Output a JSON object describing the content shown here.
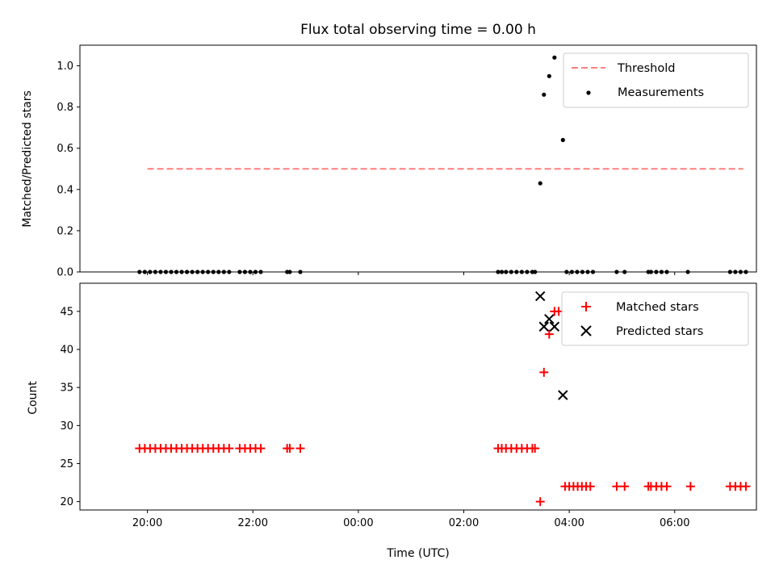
{
  "chart_data": {
    "title": "Flux total observing time = 0.00 h",
    "xlabel": "Time (UTC)",
    "x_ticks": [
      "20:00",
      "22:00",
      "00:00",
      "02:00",
      "04:00",
      "06:00"
    ],
    "x_tick_hours": [
      20,
      22,
      24,
      26,
      28,
      30
    ],
    "xlim_hours": [
      18.72,
      31.55
    ],
    "panels": [
      {
        "type": "scatter",
        "ylabel": "Matched/Predicted stars",
        "ylim": [
          0,
          1.1
        ],
        "y_ticks": [
          0.0,
          0.2,
          0.4,
          0.6,
          0.8,
          1.0
        ],
        "y_tick_labels": [
          "0.0",
          "0.2",
          "0.4",
          "0.6",
          "0.8",
          "1.0"
        ],
        "legend_position": "top-right",
        "series": [
          {
            "name": "Threshold",
            "kind": "dashed-line",
            "color": "#ff7f7f",
            "x": [
              20.0,
              31.3
            ],
            "y": [
              0.5,
              0.5
            ]
          },
          {
            "name": "Measurements",
            "kind": "dot",
            "color": "#000000",
            "points": [
              [
                19.85,
                0.0
              ],
              [
                19.95,
                0.0
              ],
              [
                20.05,
                0.0
              ],
              [
                20.15,
                0.0
              ],
              [
                20.25,
                0.0
              ],
              [
                20.35,
                0.0
              ],
              [
                20.45,
                0.0
              ],
              [
                20.55,
                0.0
              ],
              [
                20.65,
                0.0
              ],
              [
                20.75,
                0.0
              ],
              [
                20.85,
                0.0
              ],
              [
                20.95,
                0.0
              ],
              [
                21.05,
                0.0
              ],
              [
                21.15,
                0.0
              ],
              [
                21.25,
                0.0
              ],
              [
                21.35,
                0.0
              ],
              [
                21.45,
                0.0
              ],
              [
                21.55,
                0.0
              ],
              [
                21.75,
                0.0
              ],
              [
                21.85,
                0.0
              ],
              [
                21.95,
                0.0
              ],
              [
                22.05,
                0.0
              ],
              [
                22.15,
                0.0
              ],
              [
                22.65,
                0.0
              ],
              [
                22.7,
                0.0
              ],
              [
                22.9,
                0.0
              ],
              [
                26.65,
                0.0
              ],
              [
                26.72,
                0.0
              ],
              [
                26.8,
                0.0
              ],
              [
                26.9,
                0.0
              ],
              [
                27.0,
                0.0
              ],
              [
                27.1,
                0.0
              ],
              [
                27.2,
                0.0
              ],
              [
                27.3,
                0.0
              ],
              [
                27.35,
                0.0
              ],
              [
                27.45,
                0.43
              ],
              [
                27.52,
                0.86
              ],
              [
                27.62,
                0.95
              ],
              [
                27.72,
                1.04
              ],
              [
                27.88,
                0.64
              ],
              [
                27.95,
                0.0
              ],
              [
                28.05,
                0.0
              ],
              [
                28.15,
                0.0
              ],
              [
                28.25,
                0.0
              ],
              [
                28.35,
                0.0
              ],
              [
                28.45,
                0.0
              ],
              [
                28.9,
                0.0
              ],
              [
                29.05,
                0.0
              ],
              [
                29.5,
                0.0
              ],
              [
                29.55,
                0.0
              ],
              [
                29.65,
                0.0
              ],
              [
                29.75,
                0.0
              ],
              [
                29.85,
                0.0
              ],
              [
                30.25,
                0.0
              ],
              [
                31.05,
                0.0
              ],
              [
                31.15,
                0.0
              ],
              [
                31.25,
                0.0
              ],
              [
                31.35,
                0.0
              ]
            ]
          }
        ]
      },
      {
        "type": "scatter",
        "ylabel": "Count",
        "ylim": [
          18.9,
          48.7
        ],
        "y_ticks": [
          20,
          25,
          30,
          35,
          40,
          45
        ],
        "y_tick_labels": [
          "20",
          "25",
          "30",
          "35",
          "40",
          "45"
        ],
        "legend_position": "top-right",
        "series": [
          {
            "name": "Matched stars",
            "kind": "plus",
            "color": "#ff0000",
            "points": [
              [
                19.85,
                27
              ],
              [
                19.95,
                27
              ],
              [
                20.05,
                27
              ],
              [
                20.15,
                27
              ],
              [
                20.25,
                27
              ],
              [
                20.35,
                27
              ],
              [
                20.45,
                27
              ],
              [
                20.55,
                27
              ],
              [
                20.65,
                27
              ],
              [
                20.75,
                27
              ],
              [
                20.85,
                27
              ],
              [
                20.95,
                27
              ],
              [
                21.05,
                27
              ],
              [
                21.15,
                27
              ],
              [
                21.25,
                27
              ],
              [
                21.35,
                27
              ],
              [
                21.45,
                27
              ],
              [
                21.55,
                27
              ],
              [
                21.75,
                27
              ],
              [
                21.85,
                27
              ],
              [
                21.95,
                27
              ],
              [
                22.05,
                27
              ],
              [
                22.15,
                27
              ],
              [
                22.65,
                27
              ],
              [
                22.7,
                27
              ],
              [
                22.9,
                27
              ],
              [
                26.65,
                27
              ],
              [
                26.72,
                27
              ],
              [
                26.8,
                27
              ],
              [
                26.9,
                27
              ],
              [
                27.0,
                27
              ],
              [
                27.1,
                27
              ],
              [
                27.2,
                27
              ],
              [
                27.3,
                27
              ],
              [
                27.35,
                27
              ],
              [
                27.45,
                20
              ],
              [
                27.52,
                37
              ],
              [
                27.62,
                42
              ],
              [
                27.72,
                45
              ],
              [
                27.8,
                45
              ],
              [
                27.92,
                22
              ],
              [
                28.0,
                22
              ],
              [
                28.08,
                22
              ],
              [
                28.16,
                22
              ],
              [
                28.24,
                22
              ],
              [
                28.32,
                22
              ],
              [
                28.4,
                22
              ],
              [
                28.9,
                22
              ],
              [
                29.05,
                22
              ],
              [
                29.5,
                22
              ],
              [
                29.55,
                22
              ],
              [
                29.65,
                22
              ],
              [
                29.75,
                22
              ],
              [
                29.85,
                22
              ],
              [
                30.3,
                22
              ],
              [
                31.05,
                22
              ],
              [
                31.15,
                22
              ],
              [
                31.25,
                22
              ],
              [
                31.35,
                22
              ]
            ]
          },
          {
            "name": "Predicted stars",
            "kind": "x",
            "color": "#000000",
            "points": [
              [
                27.45,
                47
              ],
              [
                27.52,
                43
              ],
              [
                27.62,
                44
              ],
              [
                27.72,
                43
              ],
              [
                27.88,
                34
              ]
            ]
          }
        ]
      }
    ]
  }
}
